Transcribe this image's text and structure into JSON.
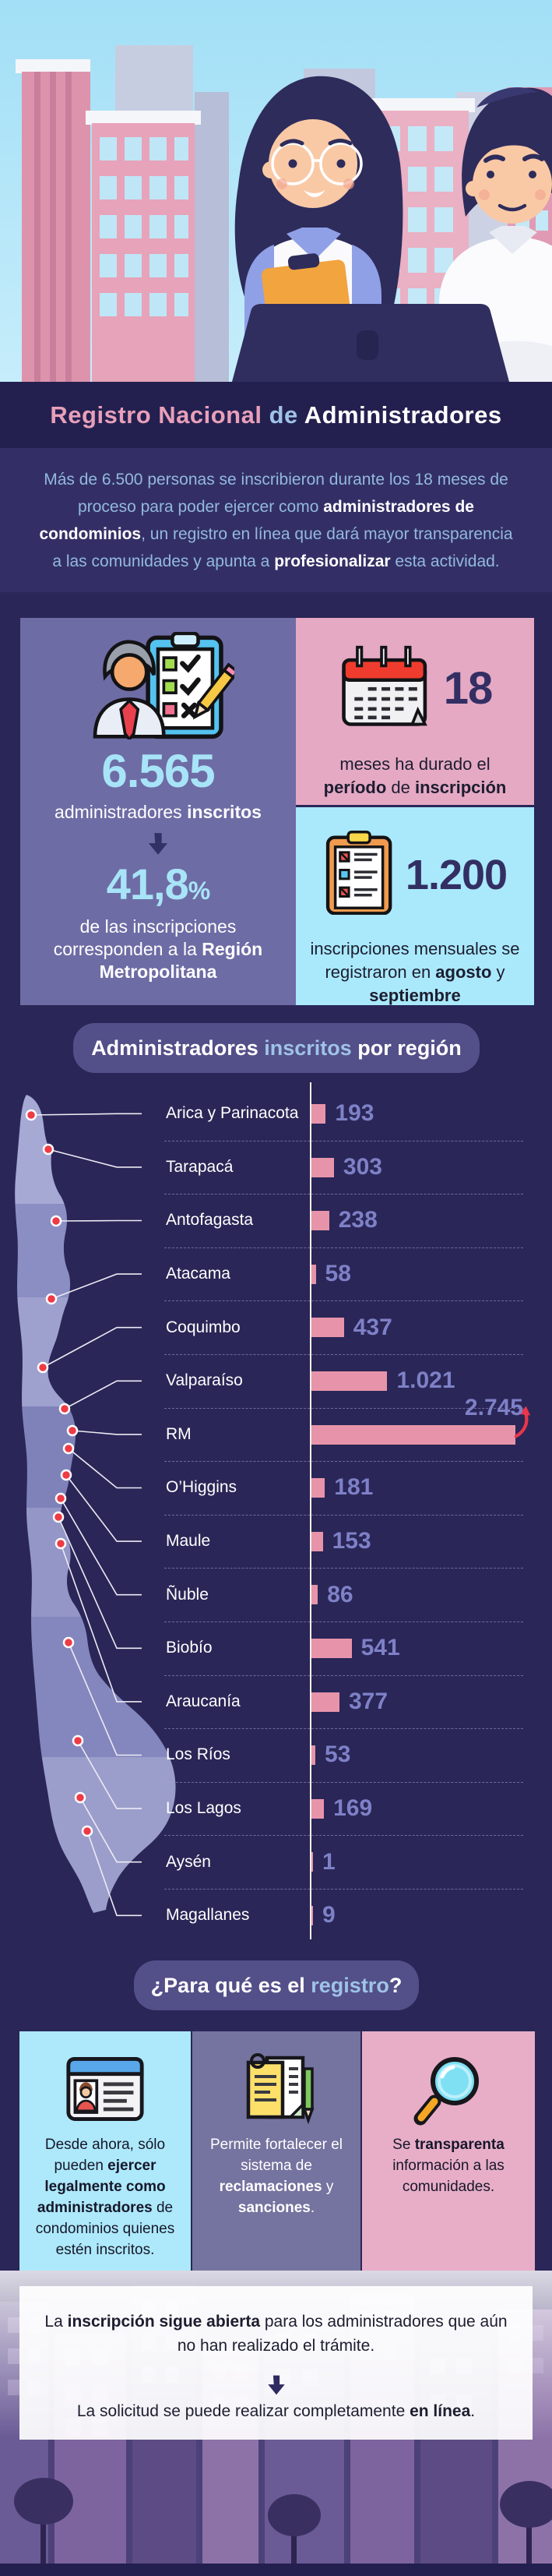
{
  "header": {
    "title_segments": [
      {
        "t": "Registro Nacional ",
        "c": "#e89fb9"
      },
      {
        "t": "de ",
        "c": "#9fc3e6"
      },
      {
        "t": "Administradores",
        "c": "#ffffff"
      }
    ]
  },
  "intro": {
    "segments": [
      {
        "t": "Más de 6.500 personas se inscribieron durante los 18 meses de proceso para poder ejercer como "
      },
      {
        "t": "administradores de condominios",
        "b": true,
        "c": "#ffffff"
      },
      {
        "t": ", un registro en línea que dará mayor transparencia a las comunidades y apunta a "
      },
      {
        "t": "profesionalizar",
        "b": true,
        "c": "#ffffff"
      },
      {
        "t": " esta actividad."
      }
    ]
  },
  "stats": {
    "registered": {
      "value": "6.565",
      "label_segments": [
        {
          "t": "administradores "
        },
        {
          "t": "inscritos",
          "b": true
        }
      ],
      "percent": "41,8",
      "percent_suffix": "%",
      "percent_label_segments": [
        {
          "t": "de las inscripciones corresponden a la "
        },
        {
          "t": "Región Metropolitana",
          "b": true
        }
      ]
    },
    "months": {
      "value": "18",
      "label_segments": [
        {
          "t": "meses ha durado el "
        },
        {
          "t": "período",
          "b": true
        },
        {
          "t": " de "
        },
        {
          "t": "inscripción",
          "b": true
        }
      ]
    },
    "monthly": {
      "value": "1.200",
      "label_segments": [
        {
          "t": "inscripciones mensuales se registraron en "
        },
        {
          "t": "agosto",
          "b": true
        },
        {
          "t": " y "
        },
        {
          "t": "septiembre",
          "b": true
        }
      ]
    }
  },
  "chart": {
    "title_segments": [
      {
        "t": "Administradores ",
        "c": "#ffffff"
      },
      {
        "t": "inscritos",
        "c": "#9fc3e6"
      },
      {
        "t": " por región",
        "c": "#ffffff"
      }
    ]
  },
  "chart_data": {
    "type": "bar",
    "orientation": "horizontal",
    "title": "Administradores inscritos por región",
    "categories": [
      "Arica y Parinacota",
      "Tarapacá",
      "Antofagasta",
      "Atacama",
      "Coquimbo",
      "Valparaíso",
      "RM",
      "O’Higgins",
      "Maule",
      "Ñuble",
      "Biobío",
      "Araucanía",
      "Los Ríos",
      "Los Lagos",
      "Aysén",
      "Magallanes"
    ],
    "values": [
      193,
      303,
      238,
      58,
      437,
      1021,
      2745,
      181,
      153,
      86,
      541,
      377,
      53,
      169,
      1,
      9
    ],
    "display_values": [
      "193",
      "303",
      "238",
      "58",
      "437",
      "1.021",
      "2.745",
      "181",
      "153",
      "86",
      "541",
      "377",
      "53",
      "169",
      "1",
      "9"
    ],
    "xlim": [
      0,
      2745
    ],
    "grid": "dashed-row-separators",
    "legend": "none",
    "bar_color": "#e794ab",
    "value_color": "#7e81c7",
    "callout": {
      "index": 6,
      "display": "2.745",
      "arrow_color": "#e8374a"
    }
  },
  "purpose": {
    "title_segments": [
      {
        "t": "¿Para qué es el ",
        "c": "#ffffff"
      },
      {
        "t": "registro",
        "c": "#9fc3e6"
      },
      {
        "t": "?",
        "c": "#ffffff"
      }
    ],
    "cards": [
      {
        "icon": "id-card",
        "bg": "#ade9fb",
        "segments": [
          {
            "t": "Desde ahora, sólo pueden "
          },
          {
            "t": "ejercer legalmente como administradores",
            "b": true
          },
          {
            "t": " de condominios quienes estén inscritos."
          }
        ]
      },
      {
        "icon": "notepad",
        "bg": "#75739f",
        "segments": [
          {
            "t": "Permite fortalecer el sistema de "
          },
          {
            "t": "reclamaciones",
            "b": true
          },
          {
            "t": " y "
          },
          {
            "t": "sanciones",
            "b": true
          },
          {
            "t": "."
          }
        ]
      },
      {
        "icon": "magnifier",
        "bg": "#e8aec8",
        "segments": [
          {
            "t": "Se "
          },
          {
            "t": "transparenta",
            "b": true
          },
          {
            "t": " información a las comunidades."
          }
        ]
      }
    ]
  },
  "footer": {
    "line1_segments": [
      {
        "t": "La "
      },
      {
        "t": "inscripción sigue abierta",
        "b": true
      },
      {
        "t": " para los administradores que aún no han realizado el trámite."
      }
    ],
    "line2_segments": [
      {
        "t": "La solicitud se puede realizar completamente "
      },
      {
        "t": "en línea",
        "b": true
      },
      {
        "t": "."
      }
    ]
  },
  "colors": {
    "page_bg": "#2a2657",
    "title_band": "#232050",
    "intro_band": "#332f66",
    "card_purple": "#6e6ca5",
    "card_pink": "#e5a9c4",
    "card_blue": "#a9e9fb",
    "accent_light_blue": "#a8e4f8",
    "accent_pink": "#e89fb9",
    "dark_navy": "#332f63",
    "bar_pink": "#e794ab",
    "value_lavender": "#7e81c7",
    "pill_bg": "#534f89",
    "red": "#ee3b46"
  }
}
